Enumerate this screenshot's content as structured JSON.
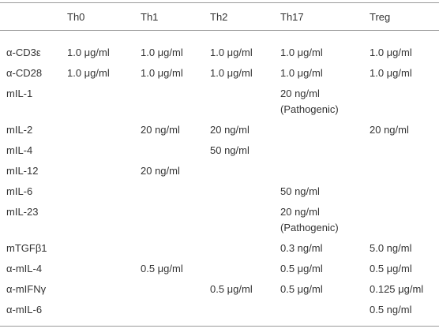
{
  "table": {
    "header": [
      "Th0",
      "Th1",
      "Th2",
      "Th17",
      "Treg"
    ],
    "rows": [
      [
        "α-CD3ε",
        "1.0 μg/ml",
        "1.0 μg/ml",
        "1.0 μg/ml",
        "1.0 μg/ml",
        "1.0 μg/ml"
      ],
      [
        "α-CD28",
        "1.0 μg/ml",
        "1.0 μg/ml",
        "1.0 μg/ml",
        "1.0 μg/ml",
        "1.0 μg/ml"
      ],
      [
        "mIL-1",
        null,
        null,
        null,
        "20 ng/ml (Pathogenic)",
        null
      ],
      [
        "mIL-2",
        null,
        "20 ng/ml",
        "20 ng/ml",
        null,
        "20 ng/ml"
      ],
      [
        "mIL-4",
        null,
        null,
        "50 ng/ml",
        null,
        null
      ],
      [
        "mIL-12",
        null,
        "20 ng/ml",
        null,
        null,
        null
      ],
      [
        "mIL-6",
        null,
        null,
        null,
        "50 ng/ml",
        null
      ],
      [
        "mIL-23",
        null,
        null,
        null,
        "20 ng/ml (Pathogenic)",
        null
      ],
      [
        "mTGFβ1",
        null,
        null,
        null,
        "0.3 ng/ml",
        "5.0 ng/ml"
      ],
      [
        "α-mIL-4",
        null,
        "0.5 μg/ml",
        null,
        "0.5 μg/ml",
        "0.5 μg/ml"
      ],
      [
        "α-mIFNγ",
        null,
        null,
        "0.5 μg/ml",
        "0.5 μg/ml",
        "0.125 μg/ml"
      ],
      [
        "α-mIL-6",
        null,
        null,
        null,
        null,
        "0.5 ng/ml"
      ]
    ]
  }
}
